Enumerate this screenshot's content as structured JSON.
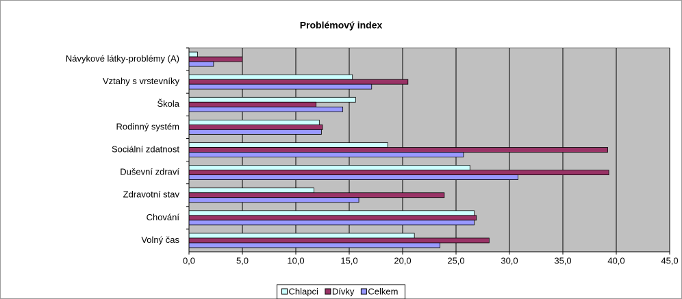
{
  "chart_data": {
    "type": "hbar",
    "title": "Problémový index",
    "categories": [
      "Návykové látky-problémy (A)",
      "Vztahy s vrstevníky",
      "Škola",
      "Rodinný systém",
      "Sociální zdatnost",
      "Duševní zdraví",
      "Zdravotní stav",
      "Chování",
      "Volný čas"
    ],
    "series": [
      {
        "name": "Chlapci",
        "color": "#ccffff",
        "values": [
          0.8,
          15.3,
          15.6,
          12.2,
          18.6,
          26.3,
          11.7,
          26.7,
          21.1
        ]
      },
      {
        "name": "Dívky",
        "color": "#993366",
        "values": [
          5.0,
          20.5,
          11.9,
          12.5,
          39.2,
          39.3,
          23.9,
          26.9,
          28.1
        ]
      },
      {
        "name": "Celkem",
        "color": "#9999ff",
        "values": [
          2.3,
          17.1,
          14.4,
          12.4,
          25.7,
          30.8,
          15.9,
          26.7,
          23.5
        ]
      }
    ],
    "xlim": [
      0,
      45
    ],
    "xticks": [
      {
        "value": 0,
        "label": "0,0"
      },
      {
        "value": 5,
        "label": "5,0"
      },
      {
        "value": 10,
        "label": "10,0"
      },
      {
        "value": 15,
        "label": "15,0"
      },
      {
        "value": 20,
        "label": "20,0"
      },
      {
        "value": 25,
        "label": "25,0"
      },
      {
        "value": 30,
        "label": "30,0"
      },
      {
        "value": 35,
        "label": "35,0"
      },
      {
        "value": 40,
        "label": "40,0"
      },
      {
        "value": 45,
        "label": "45,0"
      }
    ],
    "grid": true,
    "legend": "bottom"
  }
}
